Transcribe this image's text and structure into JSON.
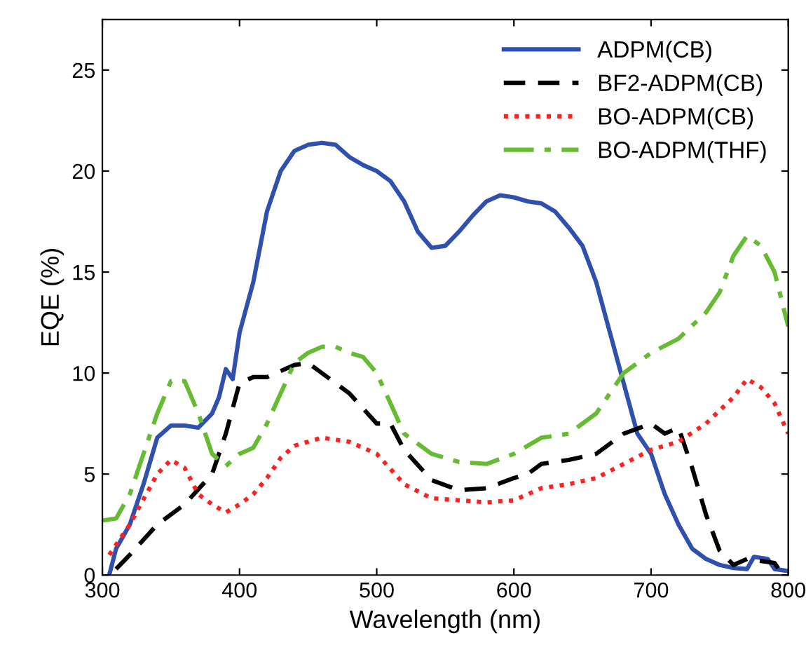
{
  "chart_data": {
    "type": "line",
    "xlabel": "Wavelength (nm)",
    "ylabel": "EQE (%)",
    "xlim": [
      300,
      800
    ],
    "ylim": [
      0,
      27.5
    ],
    "xticks": [
      300,
      400,
      500,
      600,
      700,
      800
    ],
    "yticks": [
      0,
      5,
      10,
      15,
      20,
      25
    ],
    "legend": "top right",
    "grid": false,
    "marker": "none",
    "series": [
      {
        "name": "ADPM(CB)",
        "color": "#3050b0",
        "line_style": "solid",
        "x": [
          305,
          310,
          320,
          330,
          340,
          350,
          360,
          370,
          380,
          385,
          390,
          395,
          400,
          410,
          420,
          430,
          440,
          450,
          460,
          470,
          480,
          490,
          500,
          510,
          520,
          530,
          540,
          550,
          560,
          570,
          580,
          590,
          600,
          610,
          620,
          630,
          640,
          650,
          660,
          670,
          680,
          690,
          700,
          710,
          720,
          730,
          740,
          750,
          760,
          770,
          775,
          785,
          790,
          800
        ],
        "values": [
          0,
          1.3,
          2.5,
          4.5,
          6.8,
          7.4,
          7.4,
          7.3,
          8,
          8.8,
          10.2,
          9.7,
          12,
          14.5,
          18,
          20,
          21,
          21.3,
          21.4,
          21.3,
          20.7,
          20.3,
          20,
          19.5,
          18.5,
          17,
          16.2,
          16.3,
          17,
          17.8,
          18.5,
          18.8,
          18.7,
          18.5,
          18.4,
          18,
          17.2,
          16.3,
          14.5,
          12,
          9.5,
          7,
          6,
          4,
          2.5,
          1.3,
          0.8,
          0.5,
          0.35,
          0.3,
          0.9,
          0.8,
          0.3,
          0.2
        ]
      },
      {
        "name": "BF2-ADPM(CB)",
        "color": "#000000",
        "line_style": "dashed",
        "x": [
          310,
          320,
          340,
          360,
          380,
          390,
          400,
          410,
          420,
          440,
          450,
          460,
          470,
          480,
          500,
          510,
          520,
          540,
          560,
          580,
          600,
          610,
          620,
          640,
          660,
          680,
          700,
          710,
          720,
          730,
          740,
          750,
          760,
          770,
          790,
          795
        ],
        "values": [
          0.3,
          1,
          2.5,
          3.5,
          5,
          7,
          9.5,
          9.8,
          9.8,
          10.4,
          10.5,
          10,
          9.5,
          9,
          7.5,
          7.5,
          6.2,
          4.7,
          4.2,
          4.3,
          4.8,
          5,
          5.5,
          5.7,
          6,
          7,
          7.5,
          7,
          7.3,
          5.3,
          3,
          1.2,
          0.5,
          0.8,
          0.6,
          0.1
        ]
      },
      {
        "name": "BO-ADPM(CB)",
        "color": "#ff2020",
        "line_style": "dotted",
        "x": [
          305,
          320,
          340,
          350,
          360,
          370,
          380,
          390,
          400,
          410,
          420,
          430,
          440,
          460,
          480,
          500,
          520,
          540,
          560,
          580,
          600,
          620,
          640,
          660,
          680,
          700,
          720,
          740,
          760,
          770,
          780,
          790,
          800
        ],
        "values": [
          1,
          2.5,
          5,
          5.7,
          5.3,
          4,
          3.5,
          3.1,
          3.5,
          4,
          4.8,
          5.8,
          6.4,
          6.8,
          6.6,
          6,
          4.5,
          3.8,
          3.7,
          3.6,
          3.7,
          4.3,
          4.5,
          4.8,
          5.5,
          6.2,
          6.6,
          7.5,
          8.8,
          9.7,
          9.3,
          8.5,
          7
        ]
      },
      {
        "name": "BO-ADPM(THF)",
        "color": "#66bb33",
        "line_style": "dashdot",
        "x": [
          300,
          310,
          320,
          330,
          340,
          350,
          360,
          370,
          380,
          390,
          400,
          410,
          420,
          430,
          440,
          450,
          460,
          470,
          480,
          490,
          500,
          510,
          520,
          540,
          560,
          580,
          600,
          620,
          640,
          660,
          680,
          700,
          720,
          740,
          750,
          760,
          770,
          780,
          790,
          800
        ],
        "values": [
          2.7,
          2.8,
          4,
          6,
          8,
          9.6,
          9.6,
          8,
          6,
          5.4,
          6,
          6.3,
          7.5,
          9,
          10.5,
          11,
          11.3,
          11.3,
          11,
          10.8,
          10,
          8.5,
          7,
          6,
          5.6,
          5.5,
          6,
          6.8,
          7,
          8,
          10,
          11,
          11.7,
          13,
          14,
          15.8,
          16.8,
          16.3,
          15,
          12.3
        ]
      }
    ]
  }
}
